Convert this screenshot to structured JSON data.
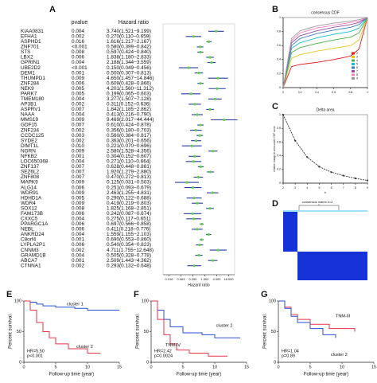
{
  "chart_data": [
    {
      "type": "forest",
      "label": "A",
      "columns": [
        "pvalue",
        "Hazard ratio"
      ],
      "xlabel": "Hazard ratio",
      "log": true,
      "color": "#2b3a9e",
      "point_color": "#5fd04a",
      "categories": [
        "KIAA0831",
        "EFHA1",
        "ASPHD1",
        "ZNF701",
        "STS",
        "LBX2",
        "GPRIN1",
        "UBE2D2",
        "DEM1",
        "THUMPD1",
        "ZNF284",
        "NEK9",
        "PARK7",
        "TMEM180",
        "AP3B1",
        "ASPRV1",
        "NAAA",
        "MMS19",
        "GDF15",
        "ZNF234",
        "CCDC125",
        "SYDE2",
        "DIMT1L",
        "NGRN",
        "NFKB2",
        "LOC650368",
        "ZNF137",
        "SEZ6L2",
        "ZNF808",
        "MAPK9",
        "ALG14",
        "WDR91",
        "HDHD1A",
        "WDR4",
        "SOX12",
        "FAM173B",
        "CXXC5",
        "PPARGC1A",
        "NEBL",
        "ANKRD24",
        "C8orf4",
        "LYPLA2P1",
        "CNNM3",
        "GRAMD1B",
        "ABCA7",
        "CTNNA1"
      ],
      "pvalue": [
        "0.004",
        "0.002",
        "0.016",
        "<0.001",
        "0.008",
        "0.006",
        "0.004",
        "<0.001",
        "0.001",
        "0.009",
        "0.006",
        "0.005",
        "0.005",
        "0.004",
        "0.002",
        "0.007",
        "0.004",
        "0.009",
        "0.007",
        "0.002",
        "0.003",
        "0.002",
        "0.010",
        "0.009",
        "0.001",
        "0.004",
        "0.007",
        "0.007",
        "0.007",
        "0.009",
        "0.006",
        "0.009",
        "0.005",
        "0.009",
        "0.008",
        "0.006",
        "0.004",
        "0.006",
        "0.006",
        "0.004",
        "0.001",
        "0.006",
        "0.002",
        "0.004",
        "0.001",
        "0.002"
      ],
      "values": [
        3.74,
        0.27,
        1.616,
        0.58,
        0.597,
        1.838,
        2.188,
        0.15,
        0.5,
        4.65,
        0.609,
        4.201,
        0.199,
        3.277,
        0.311,
        1.842,
        0.413,
        9.469,
        0.61,
        0.356,
        0.56,
        0.363,
        0.221,
        2.58,
        0.304,
        0.271,
        0.628,
        1.92,
        0.47,
        0.125,
        0.251,
        2.463,
        0.29,
        0.419,
        1.825,
        0.242,
        0.275,
        0.697,
        0.411,
        1.559,
        0.69,
        0.54,
        4.711,
        0.505,
        2.509,
        0.293
      ],
      "lower": [
        1.521,
        0.11,
        1.217,
        0.399,
        0.424,
        1.18,
        1.344,
        0.049,
        0.307,
        1.457,
        0.428,
        1.56,
        0.065,
        1.507,
        0.152,
        1.185,
        0.216,
        2.017,
        0.424,
        0.18,
        0.384,
        0.201,
        0.07,
        1.528,
        0.152,
        0.11,
        0.448,
        1.279,
        0.272,
        0.031,
        0.093,
        1.255,
        0.122,
        0.219,
        1.168,
        0.087,
        0.117,
        0.566,
        0.218,
        1.155,
        0.553,
        0.354,
        1.755,
        0.328,
        1.443,
        0.132
      ],
      "upper": [
        9.199,
        0.659,
        2.167,
        0.842,
        0.84,
        2.833,
        3.559,
        0.456,
        0.813,
        14.846,
        0.866,
        11.312,
        0.603,
        7.128,
        0.636,
        2.862,
        0.79,
        44.444,
        0.878,
        0.703,
        0.817,
        0.656,
        0.696,
        4.356,
        0.607,
        0.664,
        0.881,
        2.88,
        0.813,
        0.503,
        0.679,
        4.831,
        0.688,
        0.803,
        2.851,
        0.674,
        0.651,
        0.858,
        0.776,
        2.103,
        0.86,
        0.823,
        12.648,
        0.778,
        4.362,
        0.648
      ],
      "value_labels": [
        "3.740(1.521−9.199)",
        "0.270(0.110−0.659)",
        "1.616(1.217−2.167)",
        "0.580(0.399−0.842)",
        "0.597(0.424−0.840)",
        "1.838(1.180−2.833)",
        "2.188(1.344−3.559)",
        "0.150(0.049−0.456)",
        "0.500(0.307−0.813)",
        "4.650(1.457−14.846)",
        "0.609(0.428−0.866)",
        "4.201(1.560−11.312)",
        "0.199(0.065−0.603)",
        "3.277(1.507−7.128)",
        "0.311(0.152−0.636)",
        "1.842(1.185−2.862)",
        "0.413(0.216−0.790)",
        "9.469(2.017−44.444)",
        "0.610(0.424−0.878)",
        "0.356(0.180−0.703)",
        "0.560(0.384−0.817)",
        "0.363(0.201−0.656)",
        "0.221(0.070−0.696)",
        "2.580(1.528−4.356)",
        "0.304(0.152−0.607)",
        "0.271(0.110−0.664)",
        "0.628(0.448−0.881)",
        "1.920(1.279−2.880)",
        "0.470(0.272−0.813)",
        "0.125(0.031−0.503)",
        "0.251(0.093−0.679)",
        "2.463(1.255−4.831)",
        "0.290(0.122−0.688)",
        "0.419(0.219−0.803)",
        "1.825(1.168−2.851)",
        "0.242(0.087−0.674)",
        "0.275(0.117−0.651)",
        "0.697(0.566−0.858)",
        "0.411(0.218−0.776)",
        "1.559(1.155−2.103)",
        "0.690(0.553−0.860)",
        "0.540(0.354−0.823)",
        "4.711(1.755−12.648)",
        "0.505(0.328−0.778)",
        "2.509(1.443−4.362)",
        "0.293(0.132−0.648)"
      ],
      "xlim": [
        0.0078125,
        32
      ],
      "xticks": [
        {
          "value": 0.015625,
          "label": "0.016"
        },
        {
          "value": 0.0625,
          "label": "0.063"
        },
        {
          "value": 0.25,
          "label": "0.250"
        },
        {
          "value": 1,
          "label": "1.000"
        },
        {
          "value": 4,
          "label": "4.000"
        },
        {
          "value": 16,
          "label": "16.000"
        }
      ]
    },
    {
      "type": "line",
      "label": "B",
      "title": "consensus CDF",
      "x": [
        0,
        0.1,
        0.2,
        0.4,
        0.6,
        0.8,
        0.9,
        1
      ],
      "series": [
        {
          "name": "2",
          "color": "#e41a1c",
          "values": [
            0,
            0.3,
            0.33,
            0.36,
            0.4,
            0.45,
            0.55,
            1
          ]
        },
        {
          "name": "3",
          "color": "#e6c619",
          "values": [
            0,
            0.42,
            0.47,
            0.52,
            0.56,
            0.6,
            0.68,
            1
          ]
        },
        {
          "name": "4",
          "color": "#4daf4a",
          "values": [
            0,
            0.5,
            0.57,
            0.63,
            0.68,
            0.72,
            0.78,
            1
          ]
        },
        {
          "name": "5",
          "color": "#17becf",
          "values": [
            0,
            0.56,
            0.64,
            0.71,
            0.76,
            0.8,
            0.85,
            1
          ]
        },
        {
          "name": "6",
          "color": "#377eb8",
          "values": [
            0,
            0.6,
            0.7,
            0.77,
            0.82,
            0.86,
            0.9,
            1
          ]
        },
        {
          "name": "7",
          "color": "#984ea3",
          "values": [
            0,
            0.64,
            0.74,
            0.81,
            0.86,
            0.9,
            0.93,
            1
          ]
        },
        {
          "name": "8",
          "color": "#f781bf",
          "values": [
            0,
            0.67,
            0.78,
            0.85,
            0.89,
            0.93,
            0.95,
            1
          ]
        },
        {
          "name": "9",
          "color": "#999999",
          "values": [
            0,
            0.7,
            0.81,
            0.88,
            0.92,
            0.95,
            0.97,
            1
          ]
        }
      ],
      "xlim": [
        0,
        1
      ],
      "ylim": [
        0,
        1
      ],
      "xticks": [
        0,
        0.2,
        0.4,
        0.6,
        0.8,
        1
      ],
      "yticks": [
        0,
        0.2,
        0.4,
        0.6,
        0.8,
        1
      ]
    },
    {
      "type": "line",
      "label": "C",
      "title": "Delta area",
      "xlabel": "k",
      "ylabel": "relative change in area under CDF curve",
      "x": [
        2,
        3,
        4,
        5,
        6,
        7,
        8,
        9
      ],
      "series": [
        {
          "name": "delta",
          "color": "#333333",
          "values": [
            1.0,
            0.62,
            0.38,
            0.24,
            0.16,
            0.11,
            0.07,
            0.04
          ]
        }
      ],
      "xlim": [
        2,
        9
      ],
      "ylim": [
        0,
        1
      ],
      "xticks": [
        2,
        3,
        4,
        5,
        6,
        7,
        8,
        9
      ],
      "yticks": [
        0,
        0.2,
        0.4,
        0.6,
        0.8,
        1
      ]
    },
    {
      "type": "heatmap",
      "label": "D",
      "title": "consensus matrix k=2"
    },
    {
      "type": "km",
      "label": "E",
      "xlabel": "Follow-up time (year)",
      "ylabel": "Percent survival",
      "annotations": [
        "HR=5.50",
        "p<0.001"
      ],
      "series": [
        {
          "name": "cluster 1",
          "color": "#2a4fd8",
          "x": [
            0,
            1,
            2,
            3,
            5,
            8,
            10,
            15
          ],
          "values": [
            100,
            98,
            95,
            92,
            90,
            88,
            85,
            85
          ]
        },
        {
          "name": "cluster 2",
          "color": "#e8334a",
          "x": [
            0,
            1,
            2,
            3,
            4,
            5,
            7,
            10,
            12
          ],
          "values": [
            100,
            85,
            65,
            50,
            40,
            30,
            22,
            15,
            15
          ]
        }
      ],
      "xlim": [
        0,
        15
      ],
      "ylim": [
        0,
        100
      ],
      "xticks": [
        0,
        5,
        10,
        15
      ],
      "yticks": [
        0,
        50,
        100
      ]
    },
    {
      "type": "km",
      "label": "F",
      "xlabel": "Follow-up time (year)",
      "ylabel": "Percent survival",
      "annotations": [
        "HR=2.42",
        "p=0.0024"
      ],
      "series": [
        {
          "name": "cluster 2",
          "color": "#2a4fd8",
          "x": [
            0,
            1,
            2,
            3,
            5,
            8,
            10,
            14
          ],
          "values": [
            100,
            85,
            70,
            58,
            48,
            45,
            40,
            40
          ]
        },
        {
          "name": "TNM-IV",
          "color": "#e8334a",
          "x": [
            0,
            1,
            2,
            3,
            4,
            6,
            9,
            12
          ],
          "values": [
            100,
            70,
            45,
            30,
            20,
            15,
            10,
            10
          ]
        }
      ],
      "xlim": [
        0,
        15
      ],
      "ylim": [
        0,
        100
      ],
      "xticks": [
        0,
        5,
        10,
        15
      ],
      "yticks": [
        0,
        50,
        100
      ]
    },
    {
      "type": "km",
      "label": "G",
      "xlabel": "Follow-up time (year)",
      "ylabel": "Percent survival",
      "annotations": [
        "HR=1.04",
        "p=0.89"
      ],
      "series": [
        {
          "name": "TNM-III",
          "color": "#e8334a",
          "x": [
            0,
            1,
            2,
            3,
            5,
            8,
            12
          ],
          "values": [
            100,
            90,
            78,
            70,
            62,
            55,
            50
          ]
        },
        {
          "name": "cluster 2",
          "color": "#2a4fd8",
          "x": [
            0,
            1,
            2,
            3,
            5,
            7,
            9
          ],
          "values": [
            100,
            88,
            75,
            65,
            55,
            45,
            40
          ]
        }
      ],
      "xlim": [
        0,
        15
      ],
      "ylim": [
        0,
        100
      ],
      "xticks": [
        0,
        5,
        10,
        15
      ],
      "yticks": [
        0,
        50,
        100
      ]
    }
  ]
}
